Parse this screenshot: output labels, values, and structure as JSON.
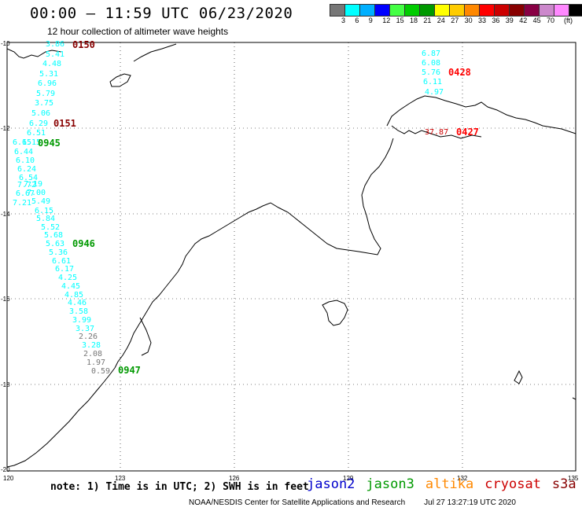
{
  "header": {
    "title": "00:00 — 11:59 UTC 06/23/2020",
    "subtitle": "12 hour collection of altimeter wave heights"
  },
  "legend": {
    "colors": [
      "#777777",
      "#00ffff",
      "#00b0ff",
      "#0000ff",
      "#44ff44",
      "#00cc00",
      "#009900",
      "#ffff00",
      "#ffcc00",
      "#ff8800",
      "#ff0000",
      "#cc0000",
      "#880000",
      "#880044",
      "#cc88cc",
      "#ff88ff",
      "#000000"
    ],
    "labels": [
      "3",
      "6",
      "9",
      "12",
      "15",
      "18",
      "21",
      "24",
      "27",
      "30",
      "33",
      "36",
      "39",
      "42",
      "45",
      "70"
    ],
    "units": "(ft)"
  },
  "axes": {
    "lon_ticks": [
      "120",
      "123",
      "126",
      "129",
      "132",
      "135"
    ],
    "lat_ticks": [
      "-10",
      "-12",
      "-14",
      "-16",
      "-18",
      "-20"
    ]
  },
  "track_west": [
    {
      "v": "3.86",
      "c": "#00ffff"
    },
    {
      "v": "5.41",
      "c": "#00ffff"
    },
    {
      "v": "4.48",
      "c": "#00ffff"
    },
    {
      "v": "5.31",
      "c": "#00ffff"
    },
    {
      "v": "6.96",
      "c": "#00ffff"
    },
    {
      "v": "5.79",
      "c": "#00ffff"
    },
    {
      "v": "3.75",
      "c": "#00ffff"
    },
    {
      "v": "5.06",
      "c": "#00ffff"
    },
    {
      "v": "6.29",
      "c": "#00ffff"
    },
    {
      "v": "6.51",
      "c": "#00ffff"
    },
    {
      "v": "6.15",
      "c": "#00ffff"
    },
    {
      "v": "6.44",
      "c": "#00ffff"
    },
    {
      "v": "6.10",
      "c": "#00ffff"
    },
    {
      "v": "6.24",
      "c": "#00ffff"
    },
    {
      "v": "6.54",
      "c": "#00ffff"
    },
    {
      "v": "7.72",
      "c": "#00ffff"
    },
    {
      "v": "6.67",
      "c": "#00ffff"
    },
    {
      "v": "7.21",
      "c": "#00ffff"
    },
    {
      "v": "6.15",
      "c": "#00ffff"
    },
    {
      "v": "5.84",
      "c": "#00ffff"
    },
    {
      "v": "5.52",
      "c": "#00ffff"
    },
    {
      "v": "5.68",
      "c": "#00ffff"
    },
    {
      "v": "5.63",
      "c": "#00ffff"
    },
    {
      "v": "5.36",
      "c": "#00ffff"
    },
    {
      "v": "6.61",
      "c": "#00ffff"
    },
    {
      "v": "6.17",
      "c": "#00ffff"
    },
    {
      "v": "4.25",
      "c": "#00ffff"
    },
    {
      "v": "4.45",
      "c": "#00ffff"
    },
    {
      "v": "4.85",
      "c": "#00ffff"
    },
    {
      "v": "4.46",
      "c": "#00ffff"
    },
    {
      "v": "3.58",
      "c": "#00ffff"
    },
    {
      "v": "3.99",
      "c": "#00ffff"
    },
    {
      "v": "3.37",
      "c": "#00ffff"
    },
    {
      "v": "2.26",
      "c": "#777777"
    },
    {
      "v": "3.28",
      "c": "#00ffff"
    },
    {
      "v": "2.08",
      "c": "#777777"
    },
    {
      "v": "1.97",
      "c": "#777777"
    },
    {
      "v": "0.59",
      "c": "#777777"
    }
  ],
  "track_west_extra": [
    {
      "v": "6.15",
      "c": "#00ffff"
    },
    {
      "v": "7.19",
      "c": "#00ffff"
    },
    {
      "v": "7.00",
      "c": "#00ffff"
    },
    {
      "v": "5.49",
      "c": "#00ffff"
    }
  ],
  "track_east": [
    {
      "v": "6.87",
      "c": "#00ffff"
    },
    {
      "v": "6.08",
      "c": "#00ffff"
    },
    {
      "v": "5.76",
      "c": "#00ffff"
    },
    {
      "v": "6.11",
      "c": "#00ffff"
    },
    {
      "v": "4.97",
      "c": "#00ffff"
    }
  ],
  "track_east_red": [
    {
      "v": "37.87",
      "c": "#cc0000"
    }
  ],
  "time_labels": [
    {
      "t": "0150",
      "c": "#880000"
    },
    {
      "t": "0151",
      "c": "#880000"
    },
    {
      "t": "0945",
      "c": "#009900"
    },
    {
      "t": "0946",
      "c": "#009900"
    },
    {
      "t": "0947",
      "c": "#009900"
    },
    {
      "t": "0428",
      "c": "#ff0000"
    },
    {
      "t": "0427",
      "c": "#ff0000"
    }
  ],
  "note": "note: 1) Time is in UTC; 2) SWH is in feet",
  "satellites": [
    {
      "name": "jason2",
      "color": "#0000cc"
    },
    {
      "name": "jason3",
      "color": "#009900"
    },
    {
      "name": "altika",
      "color": "#ff8800"
    },
    {
      "name": "cryosat",
      "color": "#cc0000"
    },
    {
      "name": "s3a",
      "color": "#880000"
    }
  ],
  "footer": {
    "org": "NOAA/NESDIS Center for Satellite Applications and Research",
    "date": "Jul 27 13:27:19 UTC 2020"
  }
}
